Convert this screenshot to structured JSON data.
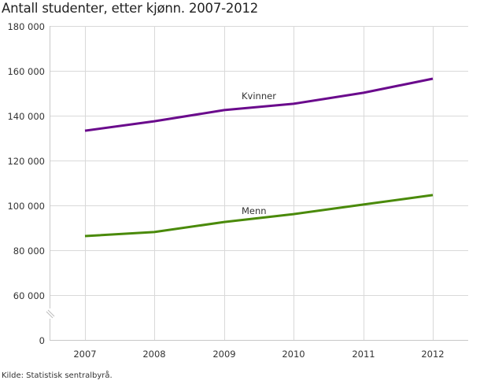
{
  "title": "Antall studenter, etter kjønn. 2007-2012",
  "source": "Kilde: Statistisk sentralbyrå.",
  "colors": {
    "kvinner": "#6a0a8c",
    "menn": "#4a8a0a",
    "grid": "#d9d9d9",
    "axis": "#c8c8c8"
  },
  "yaxis": {
    "ticks": [
      "180 000",
      "160 000",
      "140 000",
      "120 000",
      "100 000",
      "80 000",
      "60 000",
      "0"
    ],
    "break": true
  },
  "xaxis": {
    "ticks": [
      "2007",
      "2008",
      "2009",
      "2010",
      "2011",
      "2012"
    ]
  },
  "labels": {
    "kvinner": "Kvinner",
    "menn": "Menn"
  },
  "chart_data": {
    "type": "line",
    "title": "Antall studenter, etter kjønn. 2007-2012",
    "xlabel": "",
    "ylabel": "",
    "categories": [
      "2007",
      "2008",
      "2009",
      "2010",
      "2011",
      "2012"
    ],
    "series": [
      {
        "name": "Kvinner",
        "values": [
          133300,
          137500,
          142500,
          145300,
          150200,
          156500
        ]
      },
      {
        "name": "Menn",
        "values": [
          86300,
          88100,
          92600,
          96100,
          100400,
          104600
        ]
      }
    ],
    "ylim": [
      0,
      180000
    ],
    "y_axis_break": "between 0 and 60 000",
    "yticks": [
      0,
      60000,
      80000,
      100000,
      120000,
      140000,
      160000,
      180000
    ],
    "grid": true,
    "legend": "inline labels",
    "annotations": [
      "Kvinner",
      "Menn"
    ],
    "source": "Kilde: Statistisk sentralbyrå."
  }
}
